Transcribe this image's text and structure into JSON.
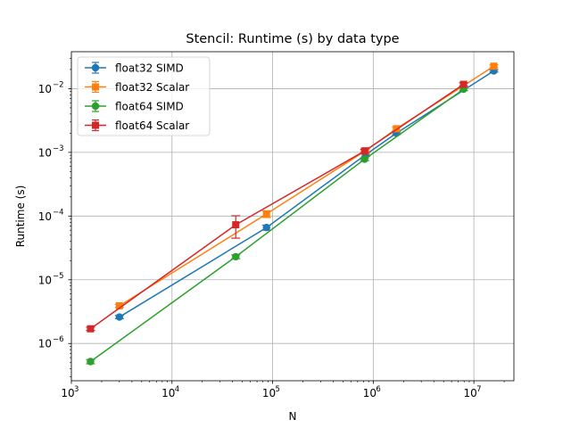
{
  "chart_data": {
    "type": "line",
    "title": "Stencil: Runtime (s) by data type",
    "xlabel": "N",
    "ylabel": "Runtime (s)",
    "xscale": "log",
    "yscale": "log",
    "xlim": [
      1000,
      25000000
    ],
    "ylim": [
      2.6e-07,
      0.038
    ],
    "xticks": [
      {
        "base": "10",
        "exp": "3"
      },
      {
        "base": "10",
        "exp": "4"
      },
      {
        "base": "10",
        "exp": "5"
      },
      {
        "base": "10",
        "exp": "6"
      },
      {
        "base": "10",
        "exp": "7"
      }
    ],
    "yticks": [
      {
        "base": "10",
        "exp": "−6"
      },
      {
        "base": "10",
        "exp": "−5"
      },
      {
        "base": "10",
        "exp": "−4"
      },
      {
        "base": "10",
        "exp": "−3"
      },
      {
        "base": "10",
        "exp": "−2"
      }
    ],
    "grid": true,
    "legend_position": "top-left",
    "series": [
      {
        "name": "float32 SIMD",
        "color": "#1f77b4",
        "marker": "circle",
        "x": [
          3000,
          87000,
          840000,
          1700000,
          15800000
        ],
        "y": [
          2.6e-06,
          6.6e-05,
          0.00092,
          0.002,
          0.019
        ],
        "yerr": [
          1.5e-07,
          6e-06,
          5e-05,
          0.0001,
          0.0008
        ]
      },
      {
        "name": "float32 Scalar",
        "color": "#ff7f0e",
        "marker": "square",
        "x": [
          3000,
          87000,
          840000,
          1700000,
          15800000
        ],
        "y": [
          3.9e-06,
          0.000108,
          0.00106,
          0.00235,
          0.0225
        ],
        "yerr": [
          2e-07,
          1.3e-05,
          8e-05,
          0.00014,
          0.0012
        ]
      },
      {
        "name": "float64 SIMD",
        "color": "#2ca02c",
        "marker": "circle",
        "x": [
          1550,
          43000,
          820000,
          7900000
        ],
        "y": [
          5.2e-07,
          2.3e-05,
          0.00078,
          0.0098
        ],
        "yerr": [
          4e-08,
          1.6e-06,
          4e-05,
          0.0005
        ]
      },
      {
        "name": "float64 Scalar",
        "color": "#d62728",
        "marker": "square",
        "x": [
          1550,
          43000,
          820000,
          7900000
        ],
        "y": [
          1.7e-06,
          7.3e-05,
          0.00105,
          0.0117
        ],
        "yerr": [
          1e-07,
          2.8e-05,
          6e-05,
          0.0007
        ]
      }
    ]
  }
}
